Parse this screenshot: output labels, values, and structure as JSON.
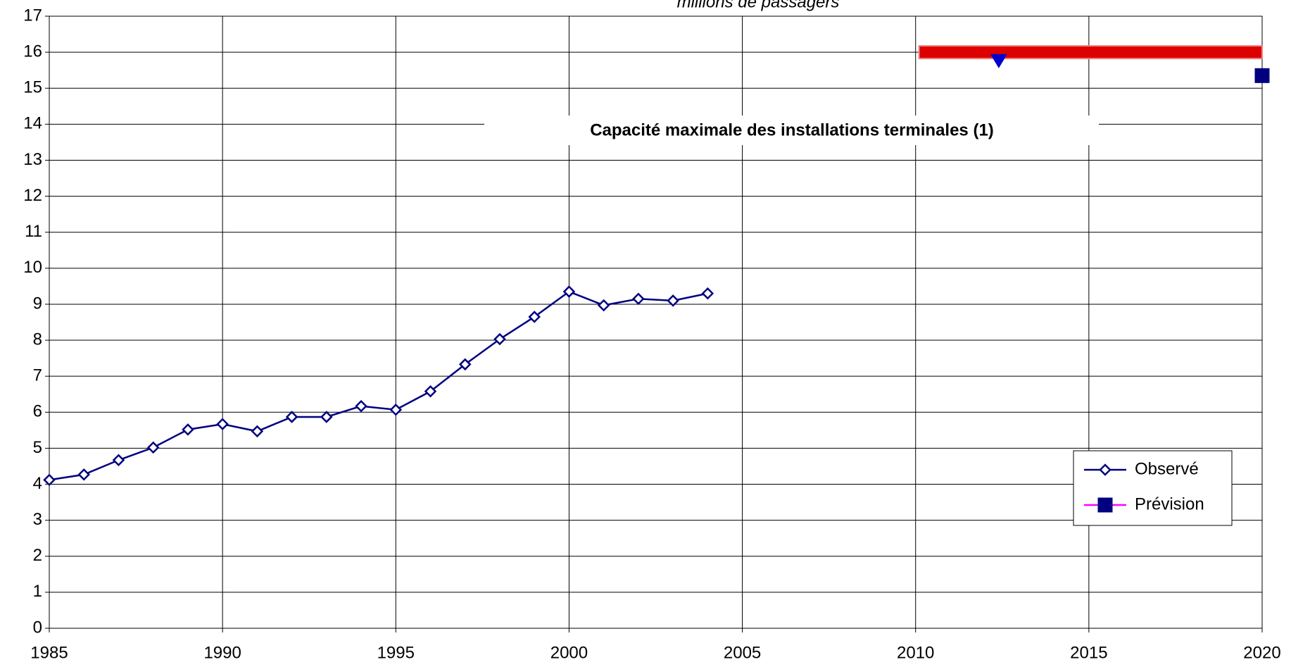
{
  "chart_data": {
    "type": "line",
    "title": "millions de passagers",
    "xlim": [
      1985,
      2020
    ],
    "xticks": [
      1985,
      1990,
      1995,
      2000,
      2005,
      2010,
      2015,
      2020
    ],
    "ylim": [
      0,
      17
    ],
    "yticks": [
      0,
      1,
      2,
      3,
      4,
      5,
      6,
      7,
      8,
      9,
      10,
      11,
      12,
      13,
      14,
      15,
      16,
      17
    ],
    "grid": true,
    "legend": "lower right",
    "series": [
      {
        "name": "Observé",
        "color": "#000080",
        "marker": "diamond",
        "x": [
          1985,
          1986,
          1987,
          1988,
          1989,
          1990,
          1991,
          1992,
          1993,
          1994,
          1995,
          1996,
          1997,
          1998,
          1999,
          2000,
          2001,
          2002,
          2003,
          2004
        ],
        "values": [
          4.12,
          4.27,
          4.67,
          5.02,
          5.52,
          5.67,
          5.47,
          5.87,
          5.87,
          6.17,
          6.07,
          6.58,
          7.33,
          8.03,
          8.65,
          9.35,
          8.97,
          9.15,
          9.1,
          9.3
        ]
      },
      {
        "name": "Prévision",
        "color": "#ff00ff",
        "marker_color": "#000080",
        "marker": "square",
        "x": [
          2020
        ],
        "values": [
          15.35
        ]
      },
      {
        "name": "Capacité maximale des installations terminales (1)",
        "color": "#dd0000",
        "marker": "none",
        "in_legend": false,
        "x": [
          2010.1,
          2020
        ],
        "values": [
          16,
          16
        ]
      }
    ],
    "points": {
      "color": "#0000cc",
      "marker": "triangle",
      "x": [
        2012.4
      ],
      "values": [
        15.75
      ]
    }
  }
}
